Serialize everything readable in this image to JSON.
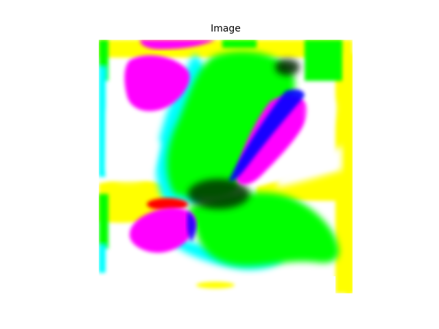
{
  "figure": {
    "title": "Image"
  },
  "image": {
    "description_colors": {
      "background": "#ffffff",
      "green": "#00ff00",
      "magenta": "#ff00ff",
      "cyan": "#00ffff",
      "yellow": "#ffff00",
      "blue": "#0000ff",
      "red": "#ff0000",
      "black": "#000000"
    }
  }
}
